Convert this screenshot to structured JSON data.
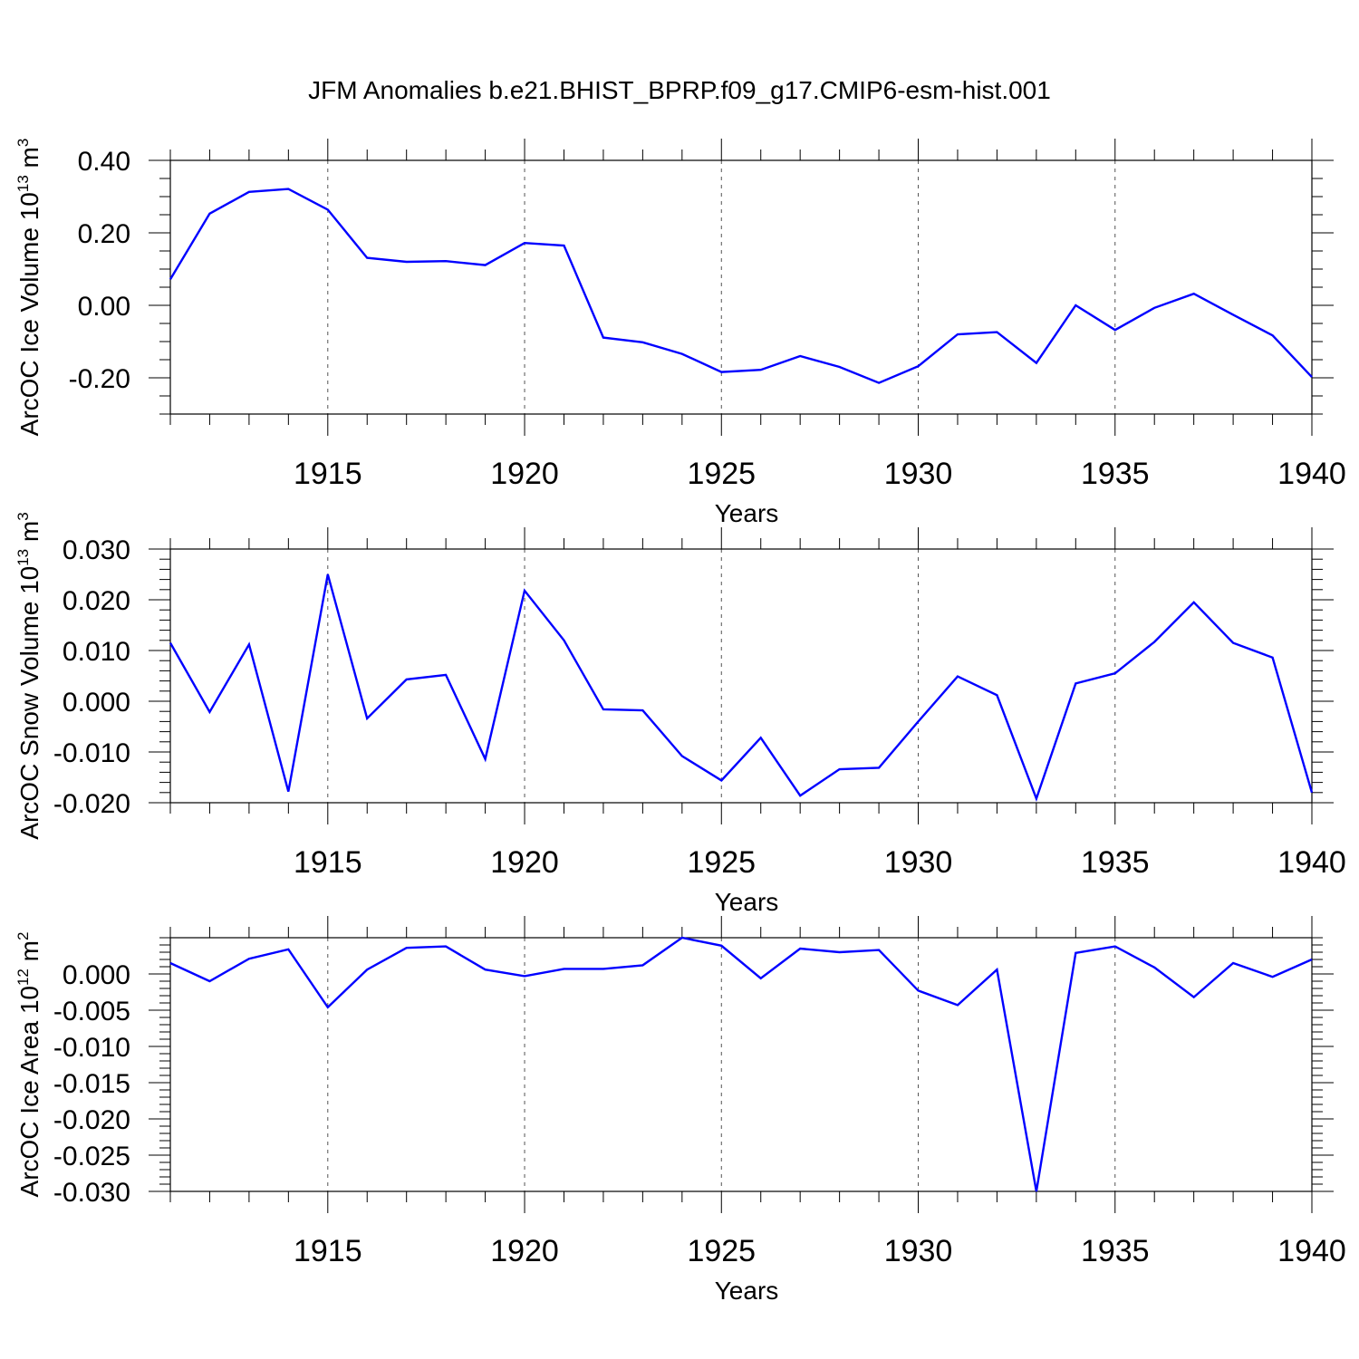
{
  "figure": {
    "title": "JFM Anomalies b.e21.BHIST_BPRP.f09_g17.CMIP6-esm-hist.001"
  },
  "chart_data": [
    {
      "type": "line",
      "ylabel": {
        "text": "ArcOC Ice Volume 10",
        "sup": "13",
        "unit": " m",
        "unit_sup": "3"
      },
      "xlabel": "Years",
      "xlim": [
        1911,
        1940
      ],
      "ylim": [
        -0.3,
        0.4
      ],
      "yticks": [
        -0.2,
        0.0,
        0.2,
        0.4
      ],
      "ytick_labels": [
        "-0.20",
        "0.00",
        "0.20",
        "0.40"
      ],
      "yminor_step": 0.05,
      "xticks": [
        1915,
        1920,
        1925,
        1930,
        1935,
        1940
      ],
      "xtick_labels": [
        "1915",
        "1920",
        "1925",
        "1930",
        "1935",
        "1940"
      ],
      "x": [
        1911,
        1912,
        1913,
        1914,
        1915,
        1916,
        1917,
        1918,
        1919,
        1920,
        1921,
        1922,
        1923,
        1924,
        1925,
        1926,
        1927,
        1928,
        1929,
        1930,
        1931,
        1932,
        1933,
        1934,
        1935,
        1936,
        1937,
        1938,
        1939,
        1940
      ],
      "series": [
        {
          "name": "ArcOC Ice Volume",
          "color": "#0000ff",
          "values": [
            0.072,
            0.253,
            0.313,
            0.321,
            0.264,
            0.131,
            0.12,
            0.122,
            0.111,
            0.172,
            0.165,
            -0.089,
            -0.102,
            -0.134,
            -0.184,
            -0.178,
            -0.14,
            -0.17,
            -0.214,
            -0.168,
            -0.08,
            -0.074,
            -0.159,
            0.0,
            -0.068,
            -0.007,
            0.032,
            -0.026,
            -0.083,
            -0.198
          ]
        }
      ]
    },
    {
      "type": "line",
      "ylabel": {
        "text": "ArcOC Snow Volume 10",
        "sup": "13",
        "unit": " m",
        "unit_sup": "3"
      },
      "xlabel": "Years",
      "xlim": [
        1911,
        1940
      ],
      "ylim": [
        -0.02,
        0.03
      ],
      "yticks": [
        -0.02,
        -0.01,
        0.0,
        0.01,
        0.02,
        0.03
      ],
      "ytick_labels": [
        "-0.020",
        "-0.010",
        "0.000",
        "0.010",
        "0.020",
        "0.030"
      ],
      "yminor_step": 0.002,
      "xticks": [
        1915,
        1920,
        1925,
        1930,
        1935,
        1940
      ],
      "xtick_labels": [
        "1915",
        "1920",
        "1925",
        "1930",
        "1935",
        "1940"
      ],
      "x": [
        1911,
        1912,
        1913,
        1914,
        1915,
        1916,
        1917,
        1918,
        1919,
        1920,
        1921,
        1922,
        1923,
        1924,
        1925,
        1926,
        1927,
        1928,
        1929,
        1930,
        1931,
        1932,
        1933,
        1934,
        1935,
        1936,
        1937,
        1938,
        1939,
        1940
      ],
      "series": [
        {
          "name": "ArcOC Snow Volume",
          "color": "#0000ff",
          "values": [
            0.0115,
            -0.0021,
            0.0112,
            -0.0178,
            0.025,
            -0.0034,
            0.0043,
            0.0052,
            -0.0114,
            0.0218,
            0.012,
            -0.0016,
            -0.0018,
            -0.0108,
            -0.0156,
            -0.0072,
            -0.0186,
            -0.0134,
            -0.0131,
            -0.004,
            0.0049,
            0.0012,
            -0.0192,
            0.0035,
            0.0055,
            0.0117,
            0.0195,
            0.0115,
            0.0086,
            -0.018
          ]
        }
      ]
    },
    {
      "type": "line",
      "ylabel": {
        "text": "ArcOC Ice Area 10",
        "sup": "12",
        "unit": " m",
        "unit_sup": "2"
      },
      "xlabel": "Years",
      "xlim": [
        1911,
        1940
      ],
      "ylim": [
        -0.03,
        0.005
      ],
      "yticks": [
        -0.03,
        -0.025,
        -0.02,
        -0.015,
        -0.01,
        -0.005,
        0.0
      ],
      "ytick_labels": [
        "-0.030",
        "-0.025",
        "-0.020",
        "-0.015",
        "-0.010",
        "-0.005",
        "0.000"
      ],
      "yminor_step": 0.001,
      "xticks": [
        1915,
        1920,
        1925,
        1930,
        1935,
        1940
      ],
      "xtick_labels": [
        "1915",
        "1920",
        "1925",
        "1930",
        "1935",
        "1940"
      ],
      "x": [
        1911,
        1912,
        1913,
        1914,
        1915,
        1916,
        1917,
        1918,
        1919,
        1920,
        1921,
        1922,
        1923,
        1924,
        1925,
        1926,
        1927,
        1928,
        1929,
        1930,
        1931,
        1932,
        1933,
        1934,
        1935,
        1936,
        1937,
        1938,
        1939,
        1940
      ],
      "series": [
        {
          "name": "ArcOC Ice Area",
          "color": "#0000ff",
          "values": [
            0.0015,
            -0.001,
            0.0021,
            0.0034,
            -0.0046,
            0.0006,
            0.0036,
            0.0038,
            0.0006,
            -0.0003,
            0.0007,
            0.0007,
            0.0012,
            0.005,
            0.0039,
            -0.0006,
            0.0035,
            0.003,
            0.0033,
            -0.0023,
            -0.0043,
            0.0006,
            -0.03,
            0.0029,
            0.0038,
            0.0009,
            -0.0032,
            0.0015,
            -0.0004,
            0.002
          ]
        }
      ]
    }
  ]
}
